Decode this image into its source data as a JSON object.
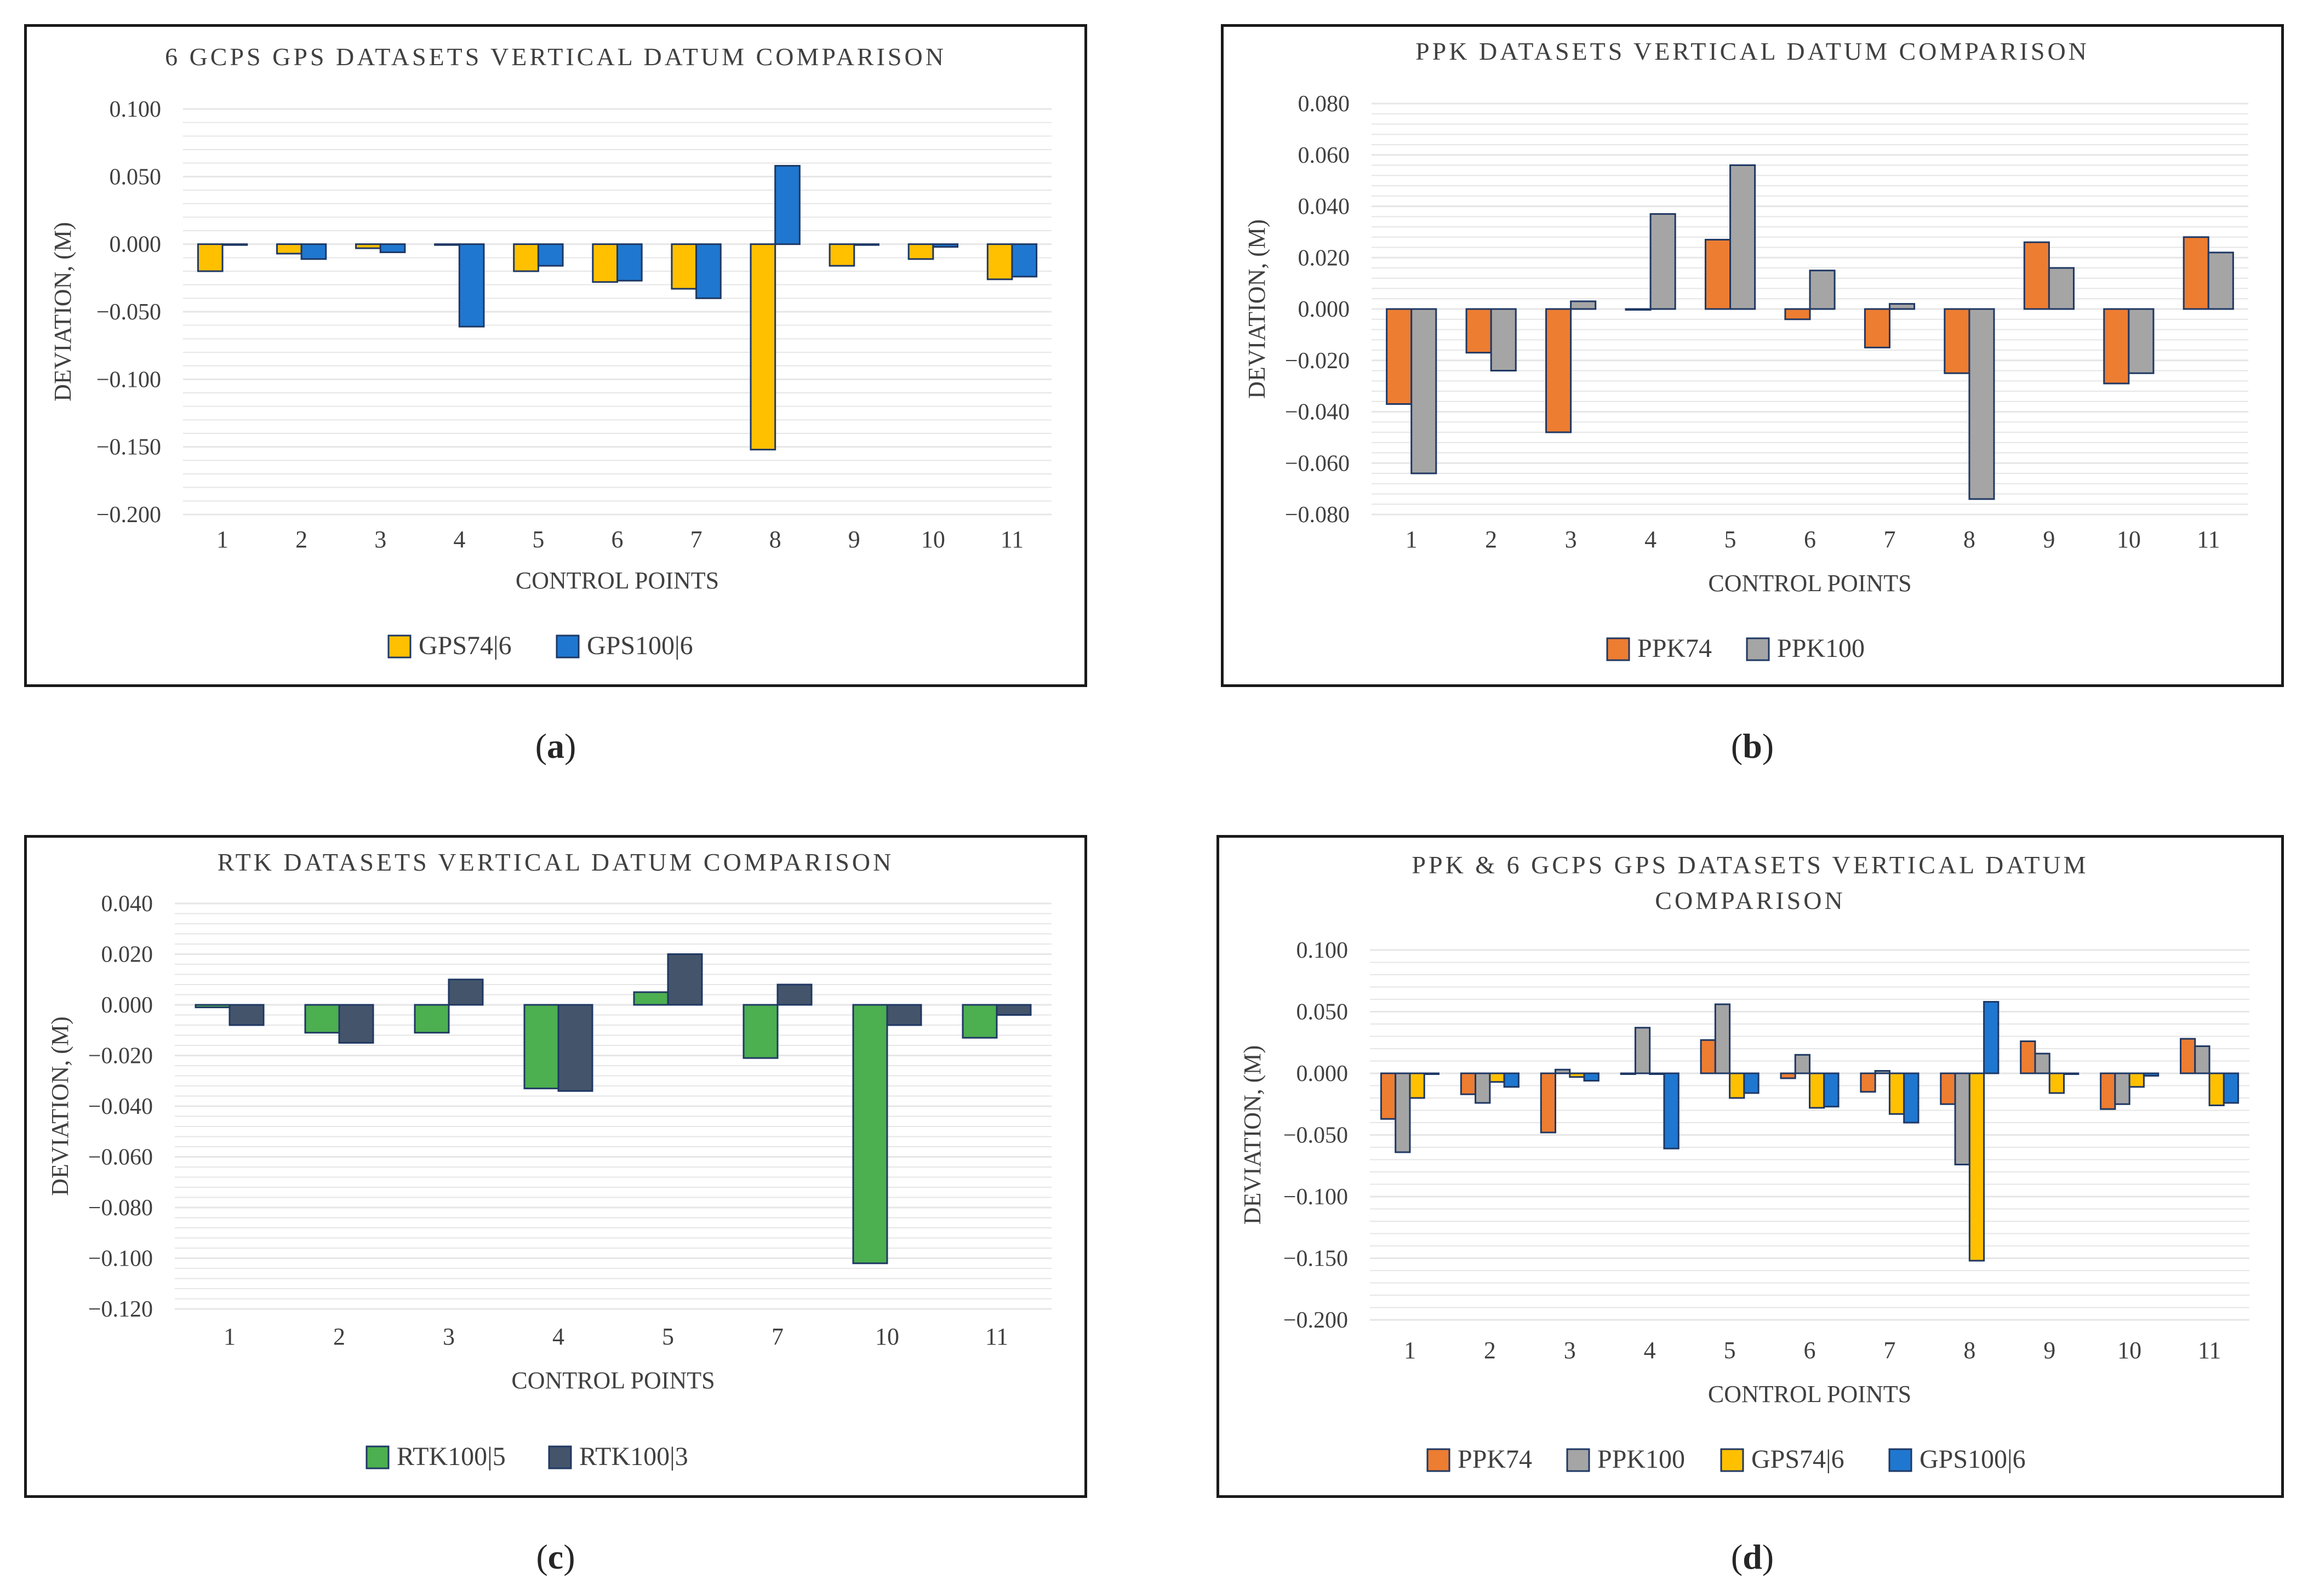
{
  "captions": [
    "(a)",
    "(b)",
    "(c)",
    "(d)"
  ],
  "chart_data": [
    {
      "type": "bar",
      "title": "6 GCPS GPS DATASETS VERTICAL DATUM COMPARISON",
      "xlabel": "CONTROL POINTS",
      "ylabel": "DEVIATION, (M)",
      "ylim": [
        -0.2,
        0.1
      ],
      "ytick_step": 0.05,
      "ytick_labels": [
        "0.100",
        "0.050",
        "0.000",
        "−0.050",
        "−0.100",
        "−0.150",
        "−0.200"
      ],
      "categories": [
        "1",
        "2",
        "3",
        "4",
        "5",
        "6",
        "7",
        "8",
        "9",
        "10",
        "11"
      ],
      "series": [
        {
          "name": "GPS74|6",
          "color": "#ffc000",
          "values": [
            -0.02,
            -0.007,
            -0.003,
            0.0,
            -0.02,
            -0.028,
            -0.033,
            -0.152,
            -0.016,
            -0.011,
            -0.026
          ]
        },
        {
          "name": "GPS100|6",
          "color": "#1f77d0",
          "values": [
            0.0,
            -0.011,
            -0.006,
            -0.061,
            -0.016,
            -0.027,
            -0.04,
            0.058,
            0.0,
            -0.002,
            -0.024
          ]
        }
      ],
      "legend": "bottom"
    },
    {
      "type": "bar",
      "title": "PPK DATASETS VERTICAL DATUM COMPARISON",
      "xlabel": "CONTROL POINTS",
      "ylabel": "DEVIATION, (M)",
      "ylim": [
        -0.08,
        0.08
      ],
      "ytick_step": 0.02,
      "ytick_labels": [
        "0.080",
        "0.060",
        "0.040",
        "0.020",
        "0.000",
        "−0.020",
        "−0.040",
        "−0.060",
        "−0.080"
      ],
      "categories": [
        "1",
        "2",
        "3",
        "4",
        "5",
        "6",
        "7",
        "8",
        "9",
        "10",
        "11"
      ],
      "series": [
        {
          "name": "PPK74",
          "color": "#ed7d31",
          "values": [
            -0.037,
            -0.017,
            -0.048,
            0.0,
            0.027,
            -0.004,
            -0.015,
            -0.025,
            0.026,
            -0.029,
            0.028
          ]
        },
        {
          "name": "PPK100",
          "color": "#a5a5a5",
          "values": [
            -0.064,
            -0.024,
            0.003,
            0.037,
            0.056,
            0.015,
            0.002,
            -0.074,
            0.016,
            -0.025,
            0.022
          ]
        }
      ],
      "legend": "bottom"
    },
    {
      "type": "bar",
      "title": "RTK DATASETS VERTICAL DATUM COMPARISON",
      "xlabel": "CONTROL POINTS",
      "ylabel": "DEVIATION, (M)",
      "ylim": [
        -0.12,
        0.04
      ],
      "ytick_step": 0.02,
      "ytick_labels": [
        "0.040",
        "0.020",
        "0.000",
        "−0.020",
        "−0.040",
        "−0.060",
        "−0.080",
        "−0.100",
        "−0.120"
      ],
      "categories": [
        "1",
        "2",
        "3",
        "4",
        "5",
        "7",
        "10",
        "11"
      ],
      "series": [
        {
          "name": "RTK100|5",
          "color": "#4caf50",
          "values": [
            -0.001,
            -0.011,
            -0.011,
            -0.033,
            0.005,
            -0.021,
            -0.102,
            -0.013
          ]
        },
        {
          "name": "RTK100|3",
          "color": "#44546a",
          "values": [
            -0.008,
            -0.015,
            0.01,
            -0.034,
            0.02,
            0.008,
            -0.008,
            -0.004
          ]
        }
      ],
      "legend": "bottom"
    },
    {
      "type": "bar",
      "title": "PPK & 6 GCPS GPS DATASETS VERTICAL DATUM COMPARISON",
      "title_lines": [
        "PPK & 6 GCPS GPS DATASETS VERTICAL DATUM",
        "COMPARISON"
      ],
      "xlabel": "CONTROL POINTS",
      "ylabel": "DEVIATION, (M)",
      "ylim": [
        -0.2,
        0.1
      ],
      "ytick_step": 0.05,
      "ytick_labels": [
        "0.100",
        "0.050",
        "0.000",
        "−0.050",
        "−0.100",
        "−0.150",
        "−0.200"
      ],
      "categories": [
        "1",
        "2",
        "3",
        "4",
        "5",
        "6",
        "7",
        "8",
        "9",
        "10",
        "11"
      ],
      "series": [
        {
          "name": "PPK74",
          "color": "#ed7d31",
          "values": [
            -0.037,
            -0.017,
            -0.048,
            0.0,
            0.027,
            -0.004,
            -0.015,
            -0.025,
            0.026,
            -0.029,
            0.028
          ]
        },
        {
          "name": "PPK100",
          "color": "#a5a5a5",
          "values": [
            -0.064,
            -0.024,
            0.003,
            0.037,
            0.056,
            0.015,
            0.002,
            -0.074,
            0.016,
            -0.025,
            0.022
          ]
        },
        {
          "name": "GPS74|6",
          "color": "#ffc000",
          "values": [
            -0.02,
            -0.007,
            -0.003,
            0.0,
            -0.02,
            -0.028,
            -0.033,
            -0.152,
            -0.016,
            -0.011,
            -0.026
          ]
        },
        {
          "name": "GPS100|6",
          "color": "#1f77d0",
          "values": [
            0.0,
            -0.011,
            -0.006,
            -0.061,
            -0.016,
            -0.027,
            -0.04,
            0.058,
            0.0,
            -0.002,
            -0.024
          ]
        }
      ],
      "legend": "bottom"
    }
  ]
}
